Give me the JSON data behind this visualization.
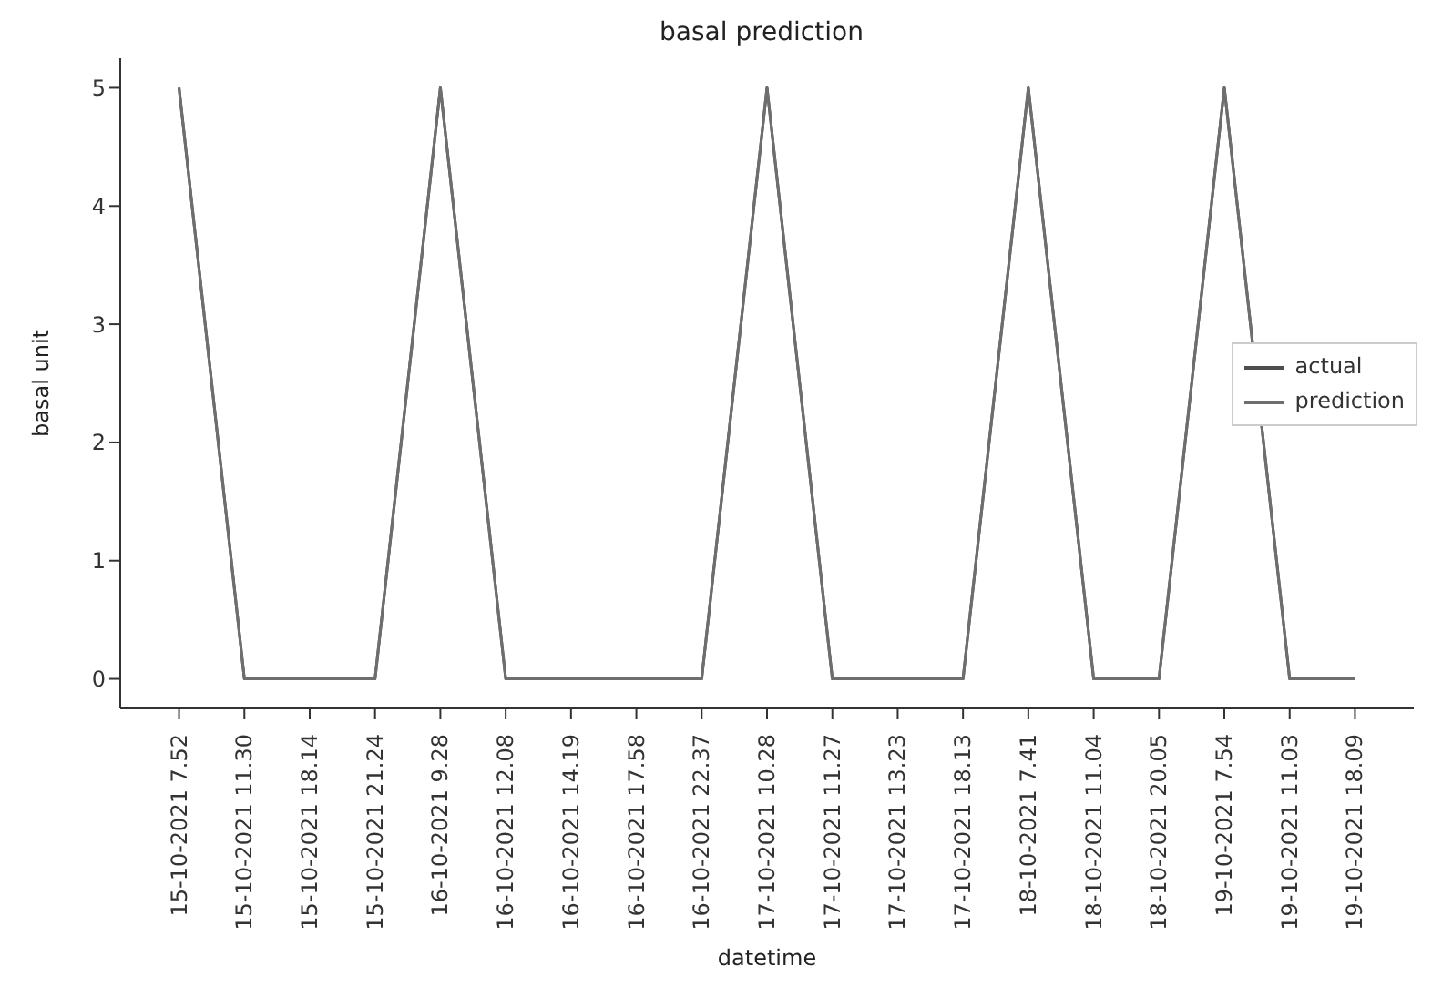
{
  "chart_data": {
    "type": "line",
    "title": "basal prediction",
    "xlabel": "datetime",
    "ylabel": "basal unit",
    "categories": [
      "15-10-2021 7.52",
      "15-10-2021 11.30",
      "15-10-2021 18.14",
      "15-10-2021 21.24",
      "16-10-2021 9.28",
      "16-10-2021 12.08",
      "16-10-2021 14.19",
      "16-10-2021 17.58",
      "16-10-2021 22.37",
      "17-10-2021 10.28",
      "17-10-2021 11.27",
      "17-10-2021 13.23",
      "17-10-2021 18.13",
      "18-10-2021 7.41",
      "18-10-2021 11.04",
      "18-10-2021 20.05",
      "19-10-2021 7.54",
      "19-10-2021 11.03",
      "19-10-2021 18.09"
    ],
    "series": [
      {
        "name": "actual",
        "color": "#4d4d4d",
        "values": [
          5,
          0,
          0,
          0,
          5,
          0,
          0,
          0,
          0,
          5,
          0,
          0,
          0,
          5,
          0,
          0,
          5,
          0,
          0
        ]
      },
      {
        "name": "prediction",
        "color": "#6e6e6e",
        "values": [
          5,
          0,
          0,
          0,
          5,
          0,
          0,
          0,
          0,
          5,
          0,
          0,
          0,
          5,
          0,
          0,
          5,
          0,
          0
        ]
      }
    ],
    "ylim": [
      -0.25,
      5.25
    ],
    "yticks": [
      0,
      1,
      2,
      3,
      4,
      5
    ],
    "legend": "right",
    "grid": false
  }
}
